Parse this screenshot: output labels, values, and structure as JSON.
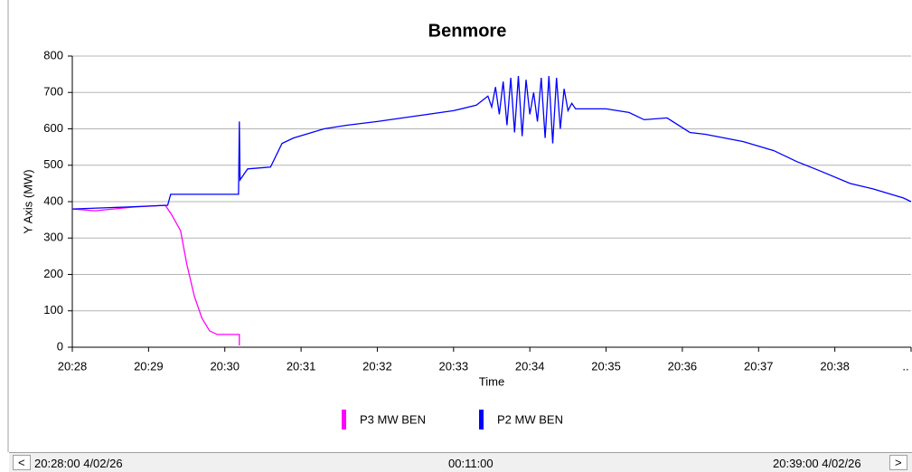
{
  "chart_data": {
    "type": "line",
    "title": "Benmore",
    "x_label": "Time",
    "y_label": "Y Axis (MW)",
    "xlim": [
      0,
      11
    ],
    "ylim": [
      0,
      800
    ],
    "xticks": [
      {
        "value": 0,
        "label": "20:28"
      },
      {
        "value": 1,
        "label": "20:29"
      },
      {
        "value": 2,
        "label": "20:30"
      },
      {
        "value": 3,
        "label": "20:31"
      },
      {
        "value": 4,
        "label": "20:32"
      },
      {
        "value": 5,
        "label": "20:33"
      },
      {
        "value": 6,
        "label": "20:34"
      },
      {
        "value": 7,
        "label": "20:35"
      },
      {
        "value": 8,
        "label": "20:36"
      },
      {
        "value": 9,
        "label": "20:37"
      },
      {
        "value": 10,
        "label": "20:38"
      },
      {
        "value": 11,
        "label": ".."
      }
    ],
    "yticks": [
      0,
      100,
      200,
      300,
      400,
      500,
      600,
      700,
      800
    ],
    "grid": true,
    "series": [
      {
        "name": "P3 MW BEN",
        "color": "#ff00ff",
        "x": [
          0,
          0.3,
          0.8,
          1.22,
          1.3,
          1.42,
          1.5,
          1.6,
          1.7,
          1.8,
          1.9,
          2.0,
          2.19,
          2.19
        ],
        "values": [
          380,
          375,
          385,
          390,
          365,
          320,
          230,
          140,
          80,
          45,
          35,
          35,
          35,
          5
        ]
      },
      {
        "name": "P2 MW BEN",
        "color": "#0000ff",
        "x": [
          0,
          0.7,
          1.25,
          1.29,
          2.18,
          2.19,
          2.2,
          2.3,
          2.6,
          2.75,
          2.9,
          3.3,
          3.6,
          4.0,
          4.5,
          5.0,
          5.3,
          5.45,
          5.5,
          5.55,
          5.6,
          5.65,
          5.7,
          5.75,
          5.8,
          5.85,
          5.9,
          5.95,
          6.0,
          6.05,
          6.1,
          6.15,
          6.2,
          6.25,
          6.3,
          6.35,
          6.4,
          6.45,
          6.5,
          6.55,
          6.6,
          7.0,
          7.3,
          7.5,
          7.8,
          8.1,
          8.3,
          8.8,
          9.2,
          9.5,
          9.8,
          10.2,
          10.5,
          10.9,
          11
        ],
        "values": [
          380,
          385,
          390,
          420,
          420,
          620,
          460,
          490,
          495,
          560,
          575,
          600,
          610,
          620,
          635,
          650,
          665,
          690,
          660,
          715,
          640,
          730,
          610,
          740,
          590,
          745,
          580,
          735,
          640,
          700,
          620,
          740,
          575,
          745,
          560,
          740,
          600,
          710,
          650,
          670,
          655,
          655,
          645,
          625,
          630,
          590,
          585,
          565,
          540,
          510,
          485,
          450,
          435,
          410,
          400
        ]
      }
    ],
    "legend": "bottom"
  },
  "navigator": {
    "prev": "<",
    "start": "20:28:00 4/02/26",
    "span": "00:11:00",
    "end": "20:39:00 4/02/26",
    "next": ">"
  }
}
